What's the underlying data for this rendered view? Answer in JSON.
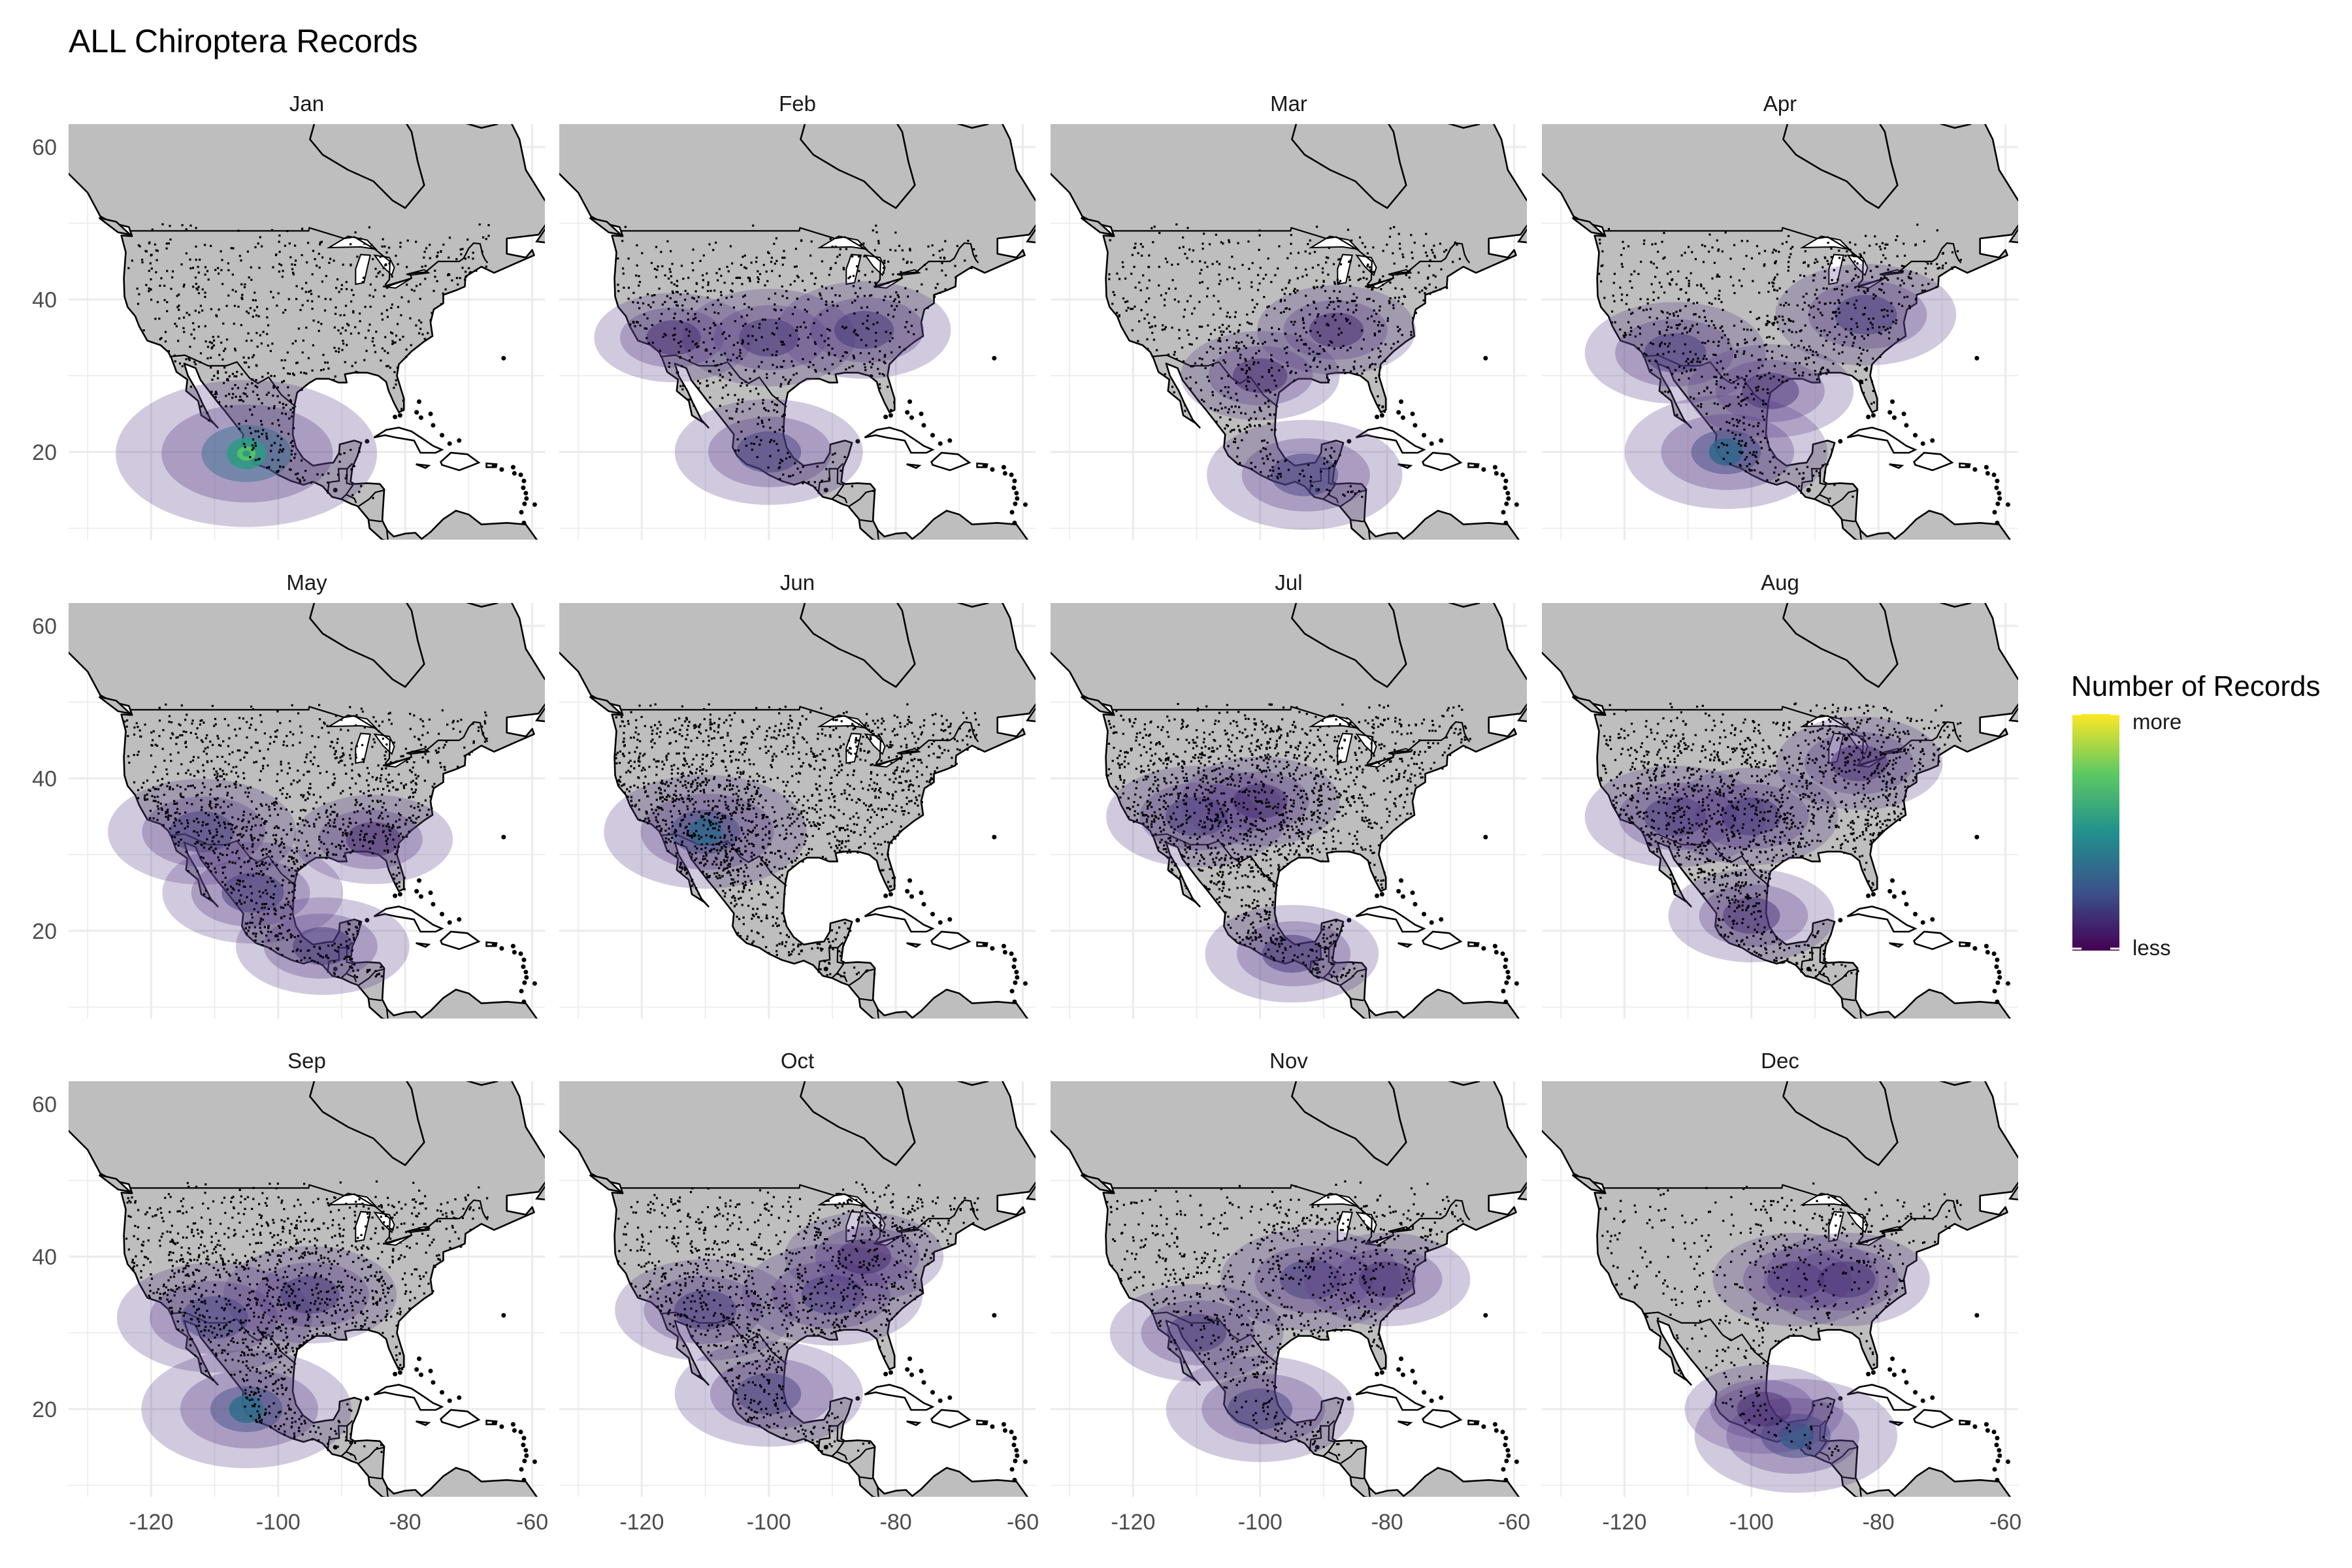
{
  "chart_data": {
    "type": "heatmap",
    "title": "ALL Chiroptera Records",
    "xlabel": "",
    "ylabel": "",
    "xlim": [
      -133,
      -58
    ],
    "ylim": [
      8.5,
      63
    ],
    "x_ticks": [
      -120,
      -100,
      -80,
      -60
    ],
    "y_ticks": [
      20,
      40,
      60
    ],
    "grid": true,
    "facets": [
      "Jan",
      "Feb",
      "Mar",
      "Apr",
      "May",
      "Jun",
      "Jul",
      "Aug",
      "Sep",
      "Oct",
      "Nov",
      "Dec"
    ],
    "legend": {
      "title": "Number of Records",
      "high_label": "more",
      "low_label": "less",
      "placement": "right",
      "colors": [
        "#440154",
        "#3b528b",
        "#21908d",
        "#5dc963",
        "#fde725"
      ]
    },
    "colors": {
      "land": "#bebebe",
      "water": "#ffffff",
      "grid": "#ebebeb",
      "outline": "#000000",
      "points": "#000000",
      "density_low": "#5b3f8a"
    },
    "monthly_hotspots": [
      {
        "month": "Jan",
        "points_density": 0.45,
        "hotspots": [
          {
            "lon": -105,
            "lat": 19.8,
            "level": 1.0
          }
        ]
      },
      {
        "month": "Feb",
        "points_density": 0.45,
        "hotspots": [
          {
            "lon": -100,
            "lat": 20,
            "level": 0.5
          },
          {
            "lon": -100,
            "lat": 35,
            "level": 0.4
          },
          {
            "lon": -85,
            "lat": 36,
            "level": 0.4
          },
          {
            "lon": -115,
            "lat": 35,
            "level": 0.3
          }
        ]
      },
      {
        "month": "Mar",
        "points_density": 0.5,
        "hotspots": [
          {
            "lon": -93,
            "lat": 17,
            "level": 0.55
          },
          {
            "lon": -100,
            "lat": 30,
            "level": 0.3
          },
          {
            "lon": -88,
            "lat": 36,
            "level": 0.3
          }
        ]
      },
      {
        "month": "Apr",
        "points_density": 0.55,
        "hotspots": [
          {
            "lon": -104,
            "lat": 20,
            "level": 0.6
          },
          {
            "lon": -112,
            "lat": 33,
            "level": 0.45
          },
          {
            "lon": -82,
            "lat": 38,
            "level": 0.45
          },
          {
            "lon": -97,
            "lat": 28,
            "level": 0.35
          }
        ]
      },
      {
        "month": "May",
        "points_density": 0.8,
        "hotspots": [
          {
            "lon": -112,
            "lat": 33,
            "level": 0.5
          },
          {
            "lon": -104,
            "lat": 25,
            "level": 0.45
          },
          {
            "lon": -93,
            "lat": 18,
            "level": 0.4
          },
          {
            "lon": -85,
            "lat": 32,
            "level": 0.3
          }
        ]
      },
      {
        "month": "Jun",
        "points_density": 1.0,
        "hotspots": [
          {
            "lon": -110,
            "lat": 33,
            "level": 0.6
          }
        ]
      },
      {
        "month": "Jul",
        "points_density": 1.0,
        "hotspots": [
          {
            "lon": -110,
            "lat": 35,
            "level": 0.45
          },
          {
            "lon": -95,
            "lat": 17,
            "level": 0.4
          },
          {
            "lon": -100,
            "lat": 37,
            "level": 0.3
          }
        ]
      },
      {
        "month": "Aug",
        "points_density": 0.95,
        "hotspots": [
          {
            "lon": -112,
            "lat": 35,
            "level": 0.45
          },
          {
            "lon": -100,
            "lat": 35,
            "level": 0.4
          },
          {
            "lon": -83,
            "lat": 42,
            "level": 0.35
          },
          {
            "lon": -100,
            "lat": 22,
            "level": 0.35
          }
        ]
      },
      {
        "month": "Sep",
        "points_density": 0.8,
        "hotspots": [
          {
            "lon": -105,
            "lat": 20,
            "level": 0.65
          },
          {
            "lon": -110,
            "lat": 32,
            "level": 0.55
          },
          {
            "lon": -95,
            "lat": 35,
            "level": 0.4
          }
        ]
      },
      {
        "month": "Oct",
        "points_density": 0.7,
        "hotspots": [
          {
            "lon": -100,
            "lat": 22,
            "level": 0.5
          },
          {
            "lon": -110,
            "lat": 33,
            "level": 0.45
          },
          {
            "lon": -90,
            "lat": 35,
            "level": 0.45
          },
          {
            "lon": -85,
            "lat": 40,
            "level": 0.3
          }
        ]
      },
      {
        "month": "Nov",
        "points_density": 0.55,
        "hotspots": [
          {
            "lon": -100,
            "lat": 20,
            "level": 0.5
          },
          {
            "lon": -92,
            "lat": 37,
            "level": 0.45
          },
          {
            "lon": -110,
            "lat": 30,
            "level": 0.4
          },
          {
            "lon": -80,
            "lat": 37,
            "level": 0.35
          }
        ]
      },
      {
        "month": "Dec",
        "points_density": 0.35,
        "hotspots": [
          {
            "lon": -93,
            "lat": 16.5,
            "level": 0.6
          },
          {
            "lon": -93,
            "lat": 37,
            "level": 0.35
          },
          {
            "lon": -85,
            "lat": 37,
            "level": 0.35
          },
          {
            "lon": -98,
            "lat": 20,
            "level": 0.3
          }
        ]
      }
    ]
  }
}
